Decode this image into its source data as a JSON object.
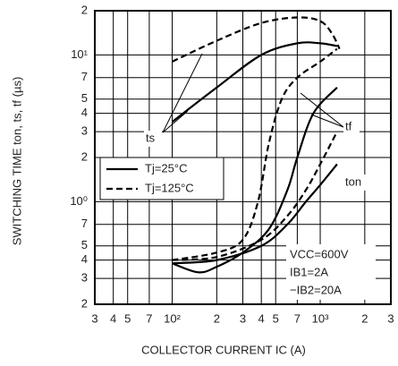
{
  "chart_data": {
    "type": "line",
    "xlabel": "COLLECTOR CURRENT   IC (A)",
    "ylabel": "SWITCHING TIME   ton, ts, tf (µs)",
    "xscale": "log",
    "yscale": "log",
    "grid": true,
    "xlim": [
      30,
      3000
    ],
    "ylim": [
      0.2,
      20
    ],
    "xticks": [
      {
        "value": 30,
        "label": "3"
      },
      {
        "value": 40,
        "label": "4"
      },
      {
        "value": 50,
        "label": "5"
      },
      {
        "value": 70,
        "label": "7"
      },
      {
        "value": 100,
        "label": "10²"
      },
      {
        "value": 200,
        "label": "2"
      },
      {
        "value": 300,
        "label": "3"
      },
      {
        "value": 400,
        "label": "4"
      },
      {
        "value": 500,
        "label": "5"
      },
      {
        "value": 700,
        "label": "7"
      },
      {
        "value": 1000,
        "label": "10³"
      },
      {
        "value": 2000,
        "label": "2"
      },
      {
        "value": 3000,
        "label": "3"
      }
    ],
    "yticks": [
      {
        "value": 0.2,
        "label": "2"
      },
      {
        "value": 0.3,
        "label": "3"
      },
      {
        "value": 0.4,
        "label": "4"
      },
      {
        "value": 0.5,
        "label": "5"
      },
      {
        "value": 0.7,
        "label": "7"
      },
      {
        "value": 1,
        "label": "10⁰"
      },
      2,
      3,
      4,
      5,
      7,
      {
        "value": 10,
        "label": "10¹"
      },
      {
        "value": 20,
        "label": "2"
      }
    ],
    "legend": [
      "Tj=25°C",
      "Tj=125°C"
    ],
    "legend_styles": [
      "solid",
      "dashed"
    ],
    "color": "#000000",
    "series": [
      {
        "name": "ts",
        "style": "solid",
        "x": [
          100,
          200,
          400,
          700,
          1000,
          1300
        ],
        "values": [
          3.5,
          6,
          10,
          12,
          12,
          11.5
        ]
      },
      {
        "name": "tf",
        "style": "solid",
        "x": [
          100,
          150,
          200,
          300,
          450,
          600,
          700,
          900,
          1300
        ],
        "values": [
          0.38,
          0.33,
          0.36,
          0.45,
          0.65,
          1.2,
          2,
          4,
          6
        ]
      },
      {
        "name": "ton",
        "style": "solid",
        "x": [
          100,
          200,
          400,
          600,
          800,
          1000,
          1300
        ],
        "values": [
          0.38,
          0.4,
          0.5,
          0.7,
          1.0,
          1.3,
          1.8
        ]
      },
      {
        "name": "ts",
        "style": "dashed",
        "x": [
          100,
          200,
          400,
          700,
          1000,
          1200,
          1350
        ],
        "values": [
          9,
          12.5,
          16.5,
          18,
          17,
          14,
          11
        ]
      },
      {
        "name": "tf",
        "style": "dashed",
        "x": [
          100,
          200,
          300,
          380,
          450,
          550,
          700,
          1000,
          1300
        ],
        "values": [
          0.4,
          0.45,
          0.55,
          1,
          2.5,
          5,
          7,
          9,
          11
        ]
      },
      {
        "name": "ton",
        "style": "dashed",
        "x": [
          100,
          200,
          400,
          600,
          800,
          1000,
          1300
        ],
        "values": [
          0.4,
          0.42,
          0.55,
          0.8,
          1.2,
          1.8,
          3
        ]
      }
    ],
    "conditions": [
      "VCC=600V",
      "IB1=2A",
      "−IB2=20A"
    ]
  }
}
